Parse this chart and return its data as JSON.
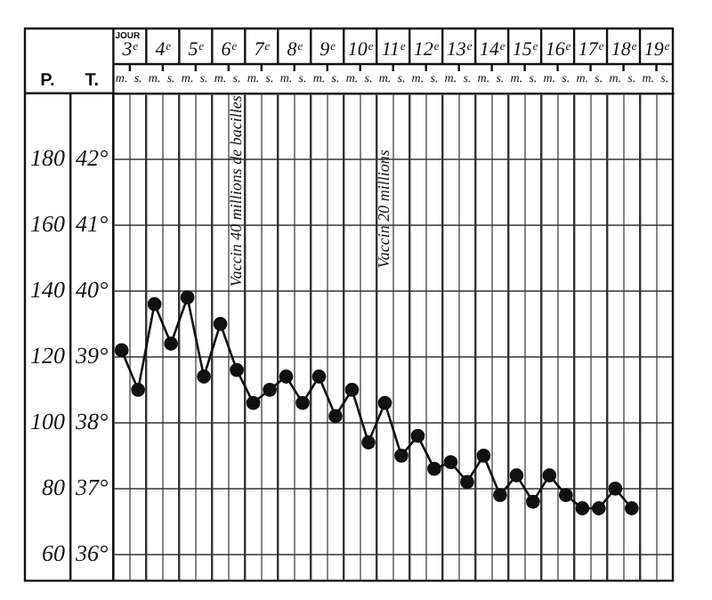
{
  "chart_data": {
    "type": "line",
    "ylabel": "T.",
    "y2label": "P.",
    "categories": [
      "m.",
      "s.",
      "m.",
      "s.",
      "m.",
      "s.",
      "m.",
      "s.",
      "m.",
      "s.",
      "m.",
      "s.",
      "m.",
      "s.",
      "m.",
      "s.",
      "m.",
      "s.",
      "m.",
      "s.",
      "m.",
      "s.",
      "m.",
      "s.",
      "m.",
      "s.",
      "m.",
      "s.",
      "m.",
      "s.",
      "m.",
      "s.",
      "m.",
      "s."
    ],
    "series": [
      {
        "color": "#111111",
        "values": [
          39.1,
          38.5,
          39.8,
          39.2,
          39.9,
          38.7,
          39.5,
          38.8,
          38.3,
          38.5,
          38.7,
          38.3,
          38.7,
          38.1,
          38.5,
          37.7,
          38.3,
          37.5,
          37.8,
          37.3,
          37.4,
          37.1,
          37.5,
          36.9,
          37.2,
          36.8,
          37.2,
          36.9,
          36.7,
          36.7,
          37.0,
          36.7,
          null,
          null
        ]
      }
    ],
    "ylim": [
      35.6,
      43
    ],
    "yticks": [
      {
        "value": 36,
        "label": "36°"
      },
      {
        "value": 37,
        "label": "37°"
      },
      {
        "value": 38,
        "label": "38°"
      },
      {
        "value": 39,
        "label": "39°"
      },
      {
        "value": 40,
        "label": "40°"
      },
      {
        "value": 41,
        "label": "41°"
      },
      {
        "value": 42,
        "label": "42°"
      }
    ],
    "y2lim": [
      52,
      200
    ],
    "y2ticks": [
      60,
      80,
      100,
      120,
      140,
      160,
      180
    ],
    "annotations": [
      "JOUR",
      "3ᵉ",
      "4ᵉ",
      "5ᵉ",
      "6ᵉ",
      "7ᵉ",
      "8ᵉ",
      "9ᵉ",
      "10ᵉ",
      "11ᵉ",
      "12ᵉ",
      "13ᵉ",
      "14ᵉ",
      "15ᵉ",
      "16ᵉ",
      "17ᵉ",
      "18ᵉ",
      "19ᵉ",
      "Vaccin 40 millions de bacilles",
      "Vaccin 20 millions"
    ],
    "grid": true,
    "legend": false,
    "marker": "circle",
    "line_style": "solid"
  }
}
